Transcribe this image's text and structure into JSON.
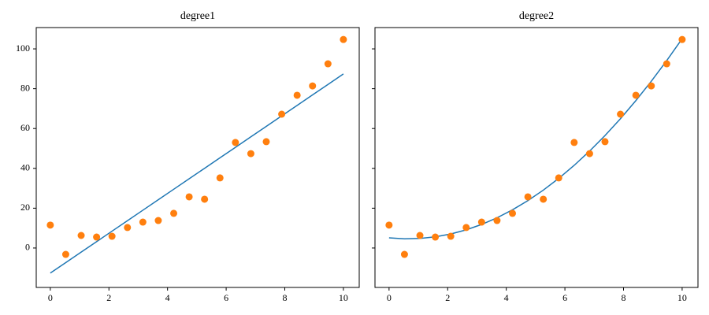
{
  "chart_data": [
    {
      "type": "scatter",
      "title": "degree1",
      "x": [
        0,
        0.526,
        1.053,
        1.579,
        2.105,
        2.632,
        3.158,
        3.684,
        4.211,
        4.737,
        5.263,
        5.789,
        6.316,
        6.842,
        7.368,
        7.895,
        8.421,
        8.947,
        9.474,
        10
      ],
      "series": [
        {
          "style": "line",
          "color": "#1f77b4",
          "values": [
            -12.6,
            -7.34,
            -2.07,
            3.19,
            8.45,
            13.72,
            18.98,
            24.24,
            29.51,
            34.77,
            40.03,
            45.29,
            50.56,
            55.82,
            61.08,
            66.35,
            71.61,
            76.87,
            82.14,
            87.4
          ]
        },
        {
          "style": "points",
          "color": "#ff7f0e",
          "values": [
            11.5,
            -3.2,
            6.3,
            5.5,
            5.9,
            10.3,
            13.0,
            13.8,
            17.4,
            25.7,
            24.5,
            35.2,
            53.0,
            47.4,
            53.4,
            67.2,
            76.7,
            81.4,
            92.5,
            104.7
          ]
        }
      ],
      "xlim": [
        -0.48,
        10.54
      ],
      "xticks": [
        0,
        2,
        4,
        6,
        8,
        10
      ],
      "ylim": [
        -19.8,
        110.7
      ],
      "yticks": [
        0,
        20,
        40,
        60,
        80,
        100
      ],
      "ytick_labels": true
    },
    {
      "type": "scatter",
      "title": "degree2",
      "x": [
        0,
        0.526,
        1.053,
        1.579,
        2.105,
        2.632,
        3.158,
        3.684,
        4.211,
        4.737,
        5.263,
        5.789,
        6.316,
        6.842,
        7.368,
        7.895,
        8.421,
        8.947,
        9.474,
        10
      ],
      "series": [
        {
          "style": "line",
          "color": "#1f77b4",
          "values": [
            5.1,
            4.63,
            4.8,
            5.6,
            7.04,
            9.12,
            11.83,
            15.18,
            19.18,
            23.8,
            29.06,
            34.96,
            41.5,
            48.67,
            56.48,
            64.94,
            74.02,
            83.74,
            94.11,
            105.1
          ]
        },
        {
          "style": "points",
          "color": "#ff7f0e",
          "values": [
            11.5,
            -3.2,
            6.3,
            5.5,
            5.9,
            10.3,
            13.0,
            13.8,
            17.4,
            25.7,
            24.5,
            35.2,
            53.0,
            47.4,
            53.4,
            67.2,
            76.7,
            81.4,
            92.5,
            104.7
          ]
        }
      ],
      "xlim": [
        -0.48,
        10.54
      ],
      "xticks": [
        0,
        2,
        4,
        6,
        8,
        10
      ],
      "ylim": [
        -19.8,
        110.7
      ],
      "yticks": [
        0,
        20,
        40,
        60,
        80,
        100
      ],
      "ytick_labels": false
    }
  ]
}
